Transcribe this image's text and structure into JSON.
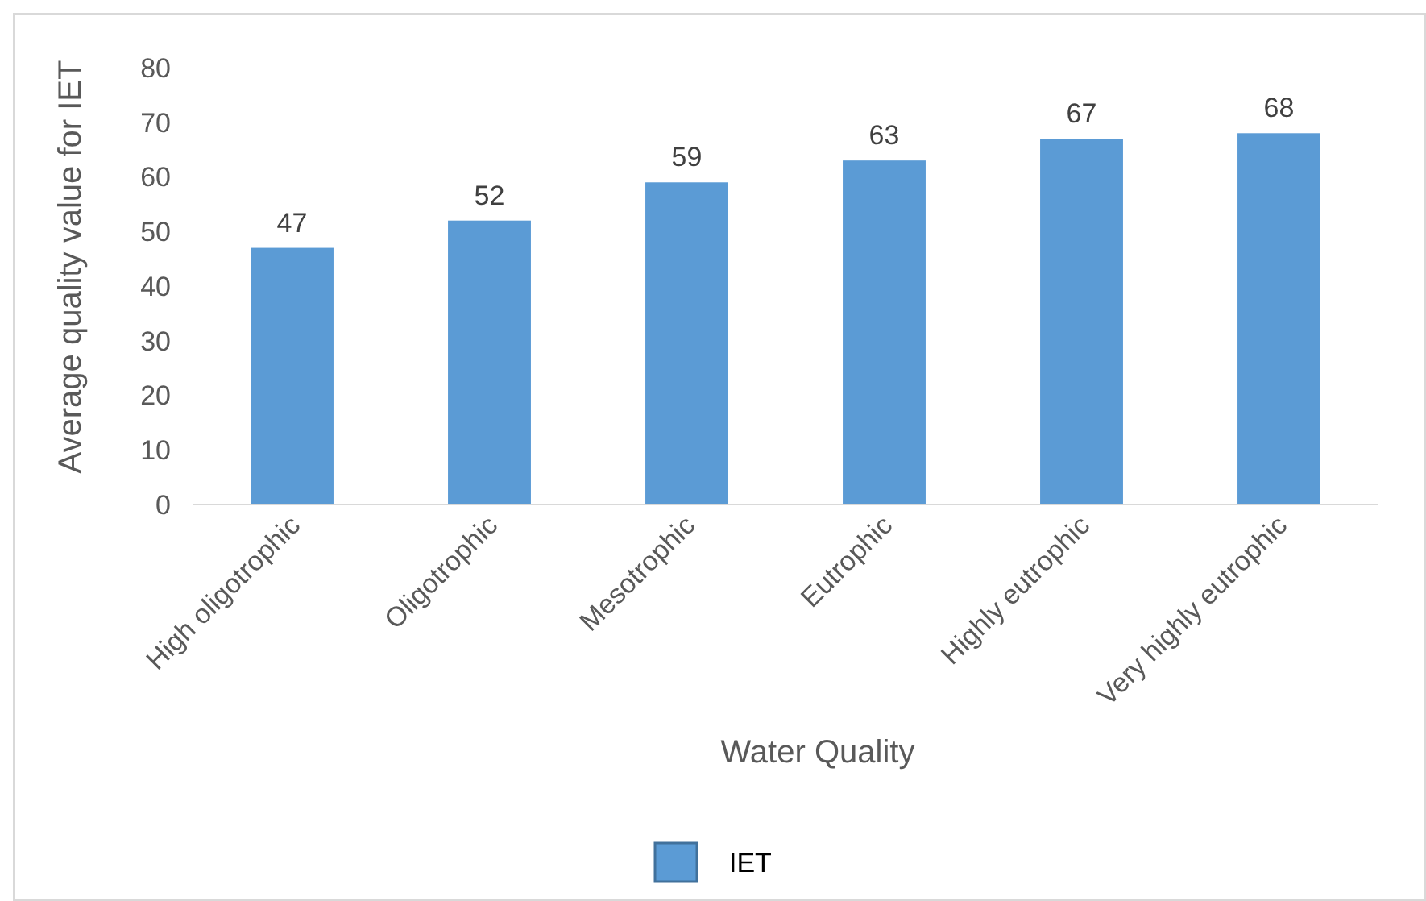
{
  "chart_data": {
    "type": "bar",
    "xlabel": "Water Quality",
    "ylabel": "Average quality value for IET",
    "categories": [
      "High oligotrophic",
      "Oligotrophic",
      "Mesotrophic",
      "Eutrophic",
      "Highly eutrophic",
      "Very highly eutrophic"
    ],
    "series": [
      {
        "name": "IET",
        "color": "#5b9bd5",
        "values": [
          47,
          52,
          59,
          63,
          67,
          68
        ]
      }
    ],
    "ylim": [
      0,
      80
    ],
    "yticks": [
      0,
      10,
      20,
      30,
      40,
      50,
      60,
      70,
      80
    ],
    "data_labels": true,
    "grid": false,
    "legend": "bottom"
  }
}
